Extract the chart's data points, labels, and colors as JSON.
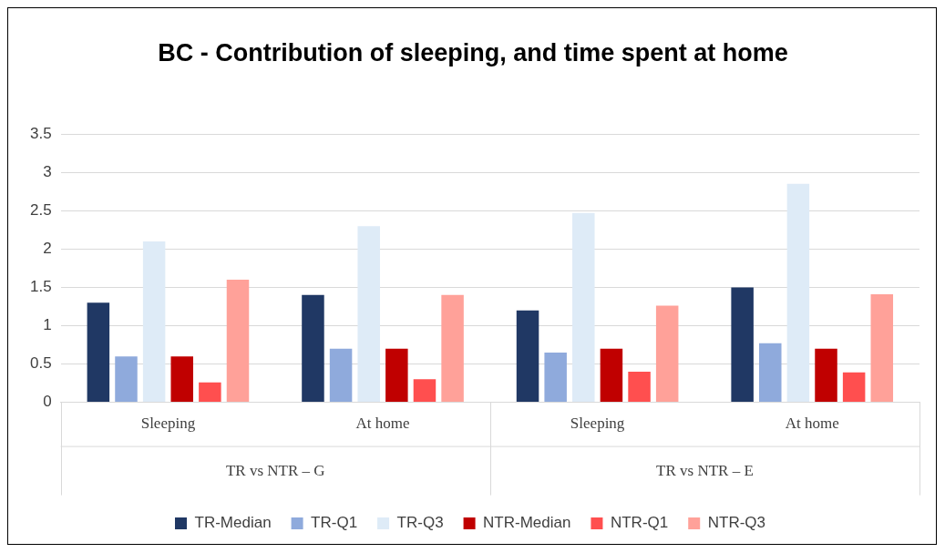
{
  "chart_data": {
    "type": "bar",
    "title": "BC - Contribution of sleeping, and time spent at home",
    "categories": [
      "Sleeping",
      "At home",
      "Sleeping",
      "At home"
    ],
    "series": [
      {
        "name": "TR-Median",
        "color": "#203864",
        "values": [
          1.3,
          1.4,
          1.2,
          1.5
        ]
      },
      {
        "name": "TR-Q1",
        "color": "#8faadc",
        "values": [
          0.6,
          0.7,
          0.65,
          0.77
        ]
      },
      {
        "name": "TR-Q3",
        "color": "#deebf7",
        "values": [
          2.1,
          2.3,
          2.47,
          2.85
        ]
      },
      {
        "name": "NTR-Median",
        "color": "#c00000",
        "values": [
          0.6,
          0.7,
          0.7,
          0.7
        ]
      },
      {
        "name": "NTR-Q1",
        "color": "#ff4f4f",
        "values": [
          0.26,
          0.3,
          0.4,
          0.39
        ]
      },
      {
        "name": "NTR-Q3",
        "color": "#ffa199",
        "values": [
          1.6,
          1.4,
          1.26,
          1.41
        ]
      }
    ],
    "annotations": [
      "TR vs NTR – G",
      "TR vs NTR – E"
    ],
    "ylim": [
      0,
      3.5
    ],
    "yticks": [
      0,
      0.5,
      1,
      1.5,
      2,
      2.5,
      3,
      3.5
    ],
    "grid": "y",
    "legend": "bottom"
  }
}
